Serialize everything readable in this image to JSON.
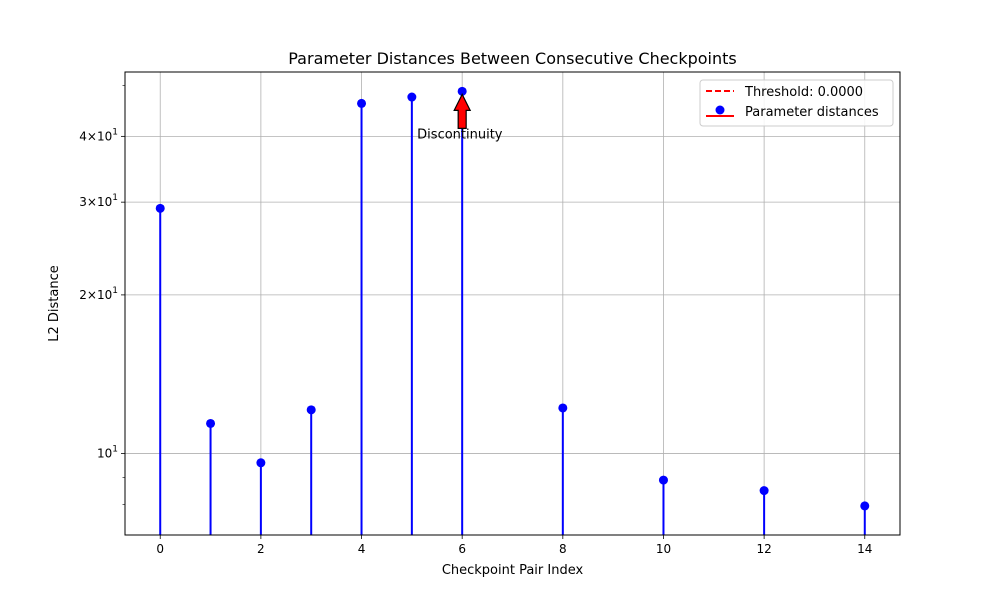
{
  "chart_data": {
    "type": "stem",
    "title": "Parameter Distances Between Consecutive Checkpoints",
    "xlabel": "Checkpoint Pair Index",
    "ylabel": "L2 Distance",
    "yscale": "log",
    "xlim": [
      -0.7,
      14.7
    ],
    "ylim": [
      7.0,
      53.0
    ],
    "grid": true,
    "x_ticks": [
      0,
      2,
      4,
      6,
      8,
      10,
      12,
      14
    ],
    "x_tick_labels": [
      "0",
      "2",
      "4",
      "6",
      "8",
      "10",
      "12",
      "14"
    ],
    "y_major_ticks": [
      {
        "value": 10,
        "base": "10",
        "exp": "1"
      },
      {
        "value": 20,
        "base": "2×10",
        "exp": "1"
      },
      {
        "value": 30,
        "base": "3×10",
        "exp": "1"
      },
      {
        "value": 40,
        "base": "4×10",
        "exp": "1"
      }
    ],
    "y_minor_ticks": [
      8,
      9,
      50
    ],
    "series": [
      {
        "name": "Parameter distances",
        "color": "#0000ff",
        "x": [
          0,
          1,
          2,
          3,
          4,
          5,
          6,
          8,
          10,
          12,
          14
        ],
        "y": [
          29.2,
          11.4,
          9.6,
          12.1,
          46.2,
          47.5,
          48.7,
          12.2,
          8.9,
          8.5,
          7.95
        ]
      }
    ],
    "threshold": {
      "label": "Threshold: 0.0000",
      "value": 0.0,
      "color": "#ff0000"
    },
    "annotation": {
      "text": "Discontinuity",
      "x": 6,
      "y": 48.7,
      "arrow_color": "#ff0000"
    },
    "legend": {
      "position": "top-right",
      "entries": [
        "Threshold: 0.0000",
        "Parameter distances"
      ]
    }
  }
}
